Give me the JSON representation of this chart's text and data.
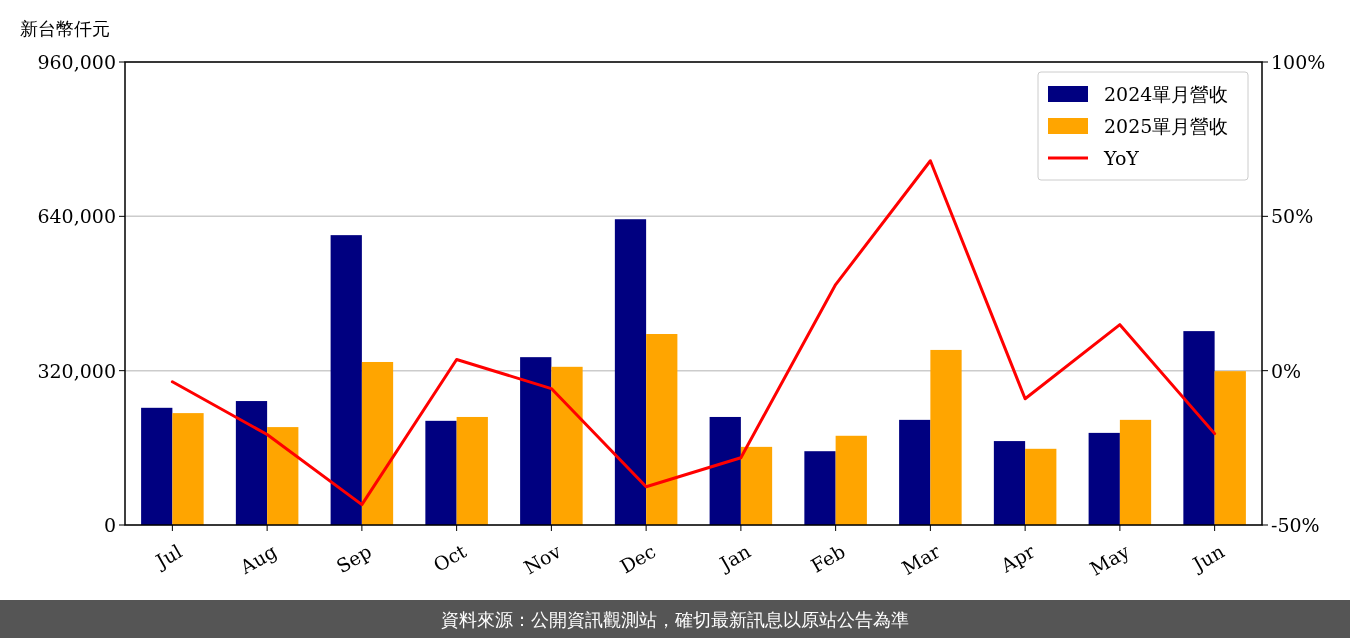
{
  "chart_data": {
    "type": "bar",
    "ylabel": "新台幣仟元",
    "categories": [
      "Jul",
      "Aug",
      "Sep",
      "Oct",
      "Nov",
      "Dec",
      "Jan",
      "Feb",
      "Mar",
      "Apr",
      "May",
      "Jun"
    ],
    "series": [
      {
        "name": "2024單月營收",
        "type": "bar",
        "color": "#000080",
        "values": [
          243000,
          257000,
          601000,
          216000,
          348000,
          634000,
          224000,
          153000,
          218000,
          174000,
          191000,
          402000
        ]
      },
      {
        "name": "2025單月營收",
        "type": "bar",
        "color": "#ffa500",
        "values": [
          232000,
          203000,
          338000,
          224000,
          328000,
          396000,
          162000,
          185000,
          363000,
          158000,
          218000,
          319000
        ]
      },
      {
        "name": "YoY",
        "type": "line",
        "axis": "y2",
        "color": "#ff0000",
        "values": [
          -3.6,
          -20.7,
          -43.4,
          3.6,
          -5.8,
          -37.6,
          -28.2,
          27.9,
          68,
          -9.1,
          14.9,
          -20.4
        ]
      }
    ],
    "ylim": [
      0,
      960000
    ],
    "yticks": [
      {
        "value": 0,
        "label": "0"
      },
      {
        "value": 320000,
        "label": "320,000"
      },
      {
        "value": 640000,
        "label": "640,000"
      },
      {
        "value": 960000,
        "label": "960,000"
      }
    ],
    "y2lim": [
      -50,
      100
    ],
    "y2ticks": [
      {
        "value": -50,
        "label": "-50%"
      },
      {
        "value": 0,
        "label": "0%"
      },
      {
        "value": 50,
        "label": "50%"
      },
      {
        "value": 100,
        "label": "100%"
      }
    ],
    "grid": "y",
    "legend": "top right",
    "annotations": [
      "資料來源：公開資訊觀測站，確切最新訊息以原站公告為準"
    ]
  }
}
